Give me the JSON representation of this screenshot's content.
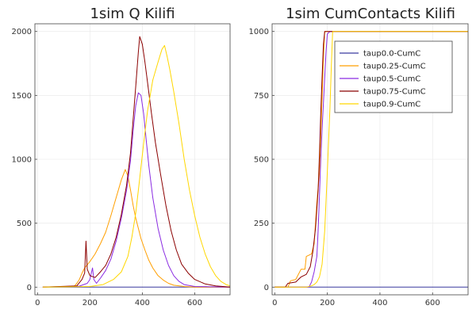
{
  "chart_data": [
    {
      "type": "line",
      "title": "1sim Q Kilifi",
      "xlabel": "",
      "ylabel": "",
      "xlim": [
        -10,
        735
      ],
      "ylim": [
        -60,
        2060
      ],
      "xticks": [
        0,
        200,
        400,
        600
      ],
      "yticks": [
        0,
        500,
        1000,
        1500,
        2000
      ],
      "grid": true,
      "legend": "none",
      "series": [
        {
          "color": "#3a3aa0",
          "points": [
            [
              20,
              0
            ],
            [
              735,
              0
            ]
          ]
        },
        {
          "color": "#ff9f00",
          "points": [
            [
              20,
              0
            ],
            [
              140,
              5
            ],
            [
              150,
              30
            ],
            [
              160,
              60
            ],
            [
              170,
              110
            ],
            [
              180,
              150
            ],
            [
              190,
              175
            ],
            [
              200,
              200
            ],
            [
              220,
              260
            ],
            [
              240,
              340
            ],
            [
              260,
              430
            ],
            [
              280,
              560
            ],
            [
              300,
              700
            ],
            [
              320,
              840
            ],
            [
              335,
              920
            ],
            [
              345,
              870
            ],
            [
              355,
              760
            ],
            [
              365,
              640
            ],
            [
              375,
              540
            ],
            [
              385,
              460
            ],
            [
              395,
              380
            ],
            [
              410,
              290
            ],
            [
              425,
              210
            ],
            [
              440,
              150
            ],
            [
              460,
              90
            ],
            [
              480,
              55
            ],
            [
              500,
              30
            ],
            [
              520,
              15
            ],
            [
              560,
              5
            ],
            [
              600,
              0
            ],
            [
              735,
              0
            ]
          ]
        },
        {
          "color": "#8a2be2",
          "points": [
            [
              20,
              0
            ],
            [
              160,
              8
            ],
            [
              190,
              30
            ],
            [
              200,
              60
            ],
            [
              210,
              150
            ],
            [
              215,
              60
            ],
            [
              225,
              30
            ],
            [
              240,
              70
            ],
            [
              260,
              130
            ],
            [
              280,
              220
            ],
            [
              300,
              360
            ],
            [
              320,
              540
            ],
            [
              340,
              760
            ],
            [
              355,
              990
            ],
            [
              365,
              1220
            ],
            [
              375,
              1420
            ],
            [
              385,
              1520
            ],
            [
              395,
              1500
            ],
            [
              405,
              1360
            ],
            [
              415,
              1150
            ],
            [
              425,
              950
            ],
            [
              440,
              700
            ],
            [
              460,
              460
            ],
            [
              480,
              290
            ],
            [
              500,
              170
            ],
            [
              520,
              90
            ],
            [
              540,
              45
            ],
            [
              560,
              20
            ],
            [
              600,
              5
            ],
            [
              735,
              0
            ]
          ]
        },
        {
          "color": "#8b0000",
          "points": [
            [
              20,
              0
            ],
            [
              150,
              10
            ],
            [
              170,
              60
            ],
            [
              180,
              110
            ],
            [
              185,
              360
            ],
            [
              190,
              140
            ],
            [
              200,
              90
            ],
            [
              220,
              75
            ],
            [
              240,
              120
            ],
            [
              260,
              170
            ],
            [
              280,
              260
            ],
            [
              300,
              390
            ],
            [
              320,
              570
            ],
            [
              340,
              800
            ],
            [
              355,
              1050
            ],
            [
              365,
              1310
            ],
            [
              375,
              1570
            ],
            [
              385,
              1840
            ],
            [
              390,
              1960
            ],
            [
              400,
              1900
            ],
            [
              410,
              1760
            ],
            [
              420,
              1600
            ],
            [
              435,
              1360
            ],
            [
              450,
              1130
            ],
            [
              470,
              880
            ],
            [
              490,
              640
            ],
            [
              510,
              440
            ],
            [
              530,
              290
            ],
            [
              550,
              180
            ],
            [
              575,
              110
            ],
            [
              600,
              60
            ],
            [
              640,
              25
            ],
            [
              680,
              10
            ],
            [
              735,
              0
            ]
          ]
        },
        {
          "color": "#ffd700",
          "points": [
            [
              20,
              0
            ],
            [
              200,
              5
            ],
            [
              250,
              20
            ],
            [
              290,
              60
            ],
            [
              320,
              120
            ],
            [
              345,
              240
            ],
            [
              360,
              390
            ],
            [
              375,
              580
            ],
            [
              390,
              850
            ],
            [
              405,
              1120
            ],
            [
              420,
              1380
            ],
            [
              440,
              1620
            ],
            [
              460,
              1760
            ],
            [
              475,
              1860
            ],
            [
              485,
              1890
            ],
            [
              495,
              1800
            ],
            [
              505,
              1700
            ],
            [
              520,
              1530
            ],
            [
              540,
              1280
            ],
            [
              560,
              1000
            ],
            [
              580,
              760
            ],
            [
              600,
              560
            ],
            [
              620,
              390
            ],
            [
              640,
              260
            ],
            [
              660,
              160
            ],
            [
              680,
              90
            ],
            [
              700,
              45
            ],
            [
              720,
              20
            ],
            [
              735,
              10
            ]
          ]
        }
      ]
    },
    {
      "type": "line",
      "title": "1sim CumContacts Kilifi",
      "xlabel": "",
      "ylabel": "",
      "xlim": [
        -10,
        735
      ],
      "ylim": [
        -30,
        1030
      ],
      "xticks": [
        0,
        200,
        400,
        600
      ],
      "yticks": [
        0,
        250,
        500,
        750,
        1000
      ],
      "grid": true,
      "legend": "top-right",
      "series": [
        {
          "name": "taup0.0-CumC",
          "color": "#3a3aa0",
          "points": [
            [
              0,
              0
            ],
            [
              735,
              0
            ]
          ]
        },
        {
          "name": "taup0.25-CumC",
          "color": "#ff9f00",
          "points": [
            [
              0,
              0
            ],
            [
              50,
              0
            ],
            [
              60,
              25
            ],
            [
              80,
              30
            ],
            [
              100,
              70
            ],
            [
              115,
              70
            ],
            [
              120,
              120
            ],
            [
              140,
              130
            ],
            [
              150,
              170
            ],
            [
              155,
              250
            ],
            [
              160,
              330
            ],
            [
              170,
              450
            ],
            [
              175,
              580
            ],
            [
              180,
              740
            ],
            [
              185,
              900
            ],
            [
              190,
              1000
            ],
            [
              735,
              1000
            ]
          ]
        },
        {
          "name": "taup0.5-CumC",
          "color": "#8a2be2",
          "points": [
            [
              0,
              0
            ],
            [
              130,
              0
            ],
            [
              140,
              20
            ],
            [
              150,
              60
            ],
            [
              160,
              120
            ],
            [
              165,
              220
            ],
            [
              170,
              360
            ],
            [
              175,
              500
            ],
            [
              180,
              620
            ],
            [
              185,
              720
            ],
            [
              190,
              820
            ],
            [
              195,
              920
            ],
            [
              200,
              990
            ],
            [
              210,
              1000
            ],
            [
              735,
              1000
            ]
          ]
        },
        {
          "name": "taup0.75-CumC",
          "color": "#8b0000",
          "points": [
            [
              0,
              0
            ],
            [
              40,
              0
            ],
            [
              50,
              15
            ],
            [
              80,
              20
            ],
            [
              100,
              40
            ],
            [
              120,
              50
            ],
            [
              135,
              80
            ],
            [
              145,
              140
            ],
            [
              155,
              230
            ],
            [
              165,
              380
            ],
            [
              170,
              520
            ],
            [
              175,
              680
            ],
            [
              180,
              820
            ],
            [
              185,
              950
            ],
            [
              190,
              1000
            ],
            [
              735,
              1000
            ]
          ]
        },
        {
          "name": "taup0.9-CumC",
          "color": "#ffd700",
          "points": [
            [
              0,
              0
            ],
            [
              120,
              0
            ],
            [
              140,
              5
            ],
            [
              150,
              10
            ],
            [
              160,
              20
            ],
            [
              170,
              40
            ],
            [
              180,
              90
            ],
            [
              190,
              220
            ],
            [
              200,
              450
            ],
            [
              210,
              700
            ],
            [
              215,
              860
            ],
            [
              220,
              1000
            ],
            [
              735,
              1000
            ]
          ]
        }
      ]
    }
  ]
}
